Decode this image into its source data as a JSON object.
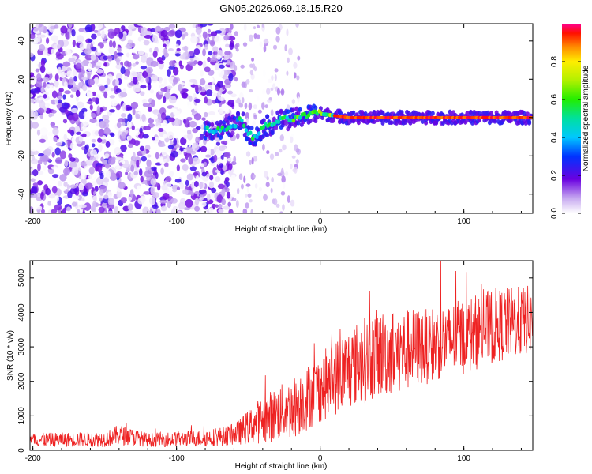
{
  "title": "GN05.2026.069.18.15.R20",
  "chart_data": [
    {
      "type": "heatmap",
      "xlabel": "Height of straight line (km)",
      "ylabel": "Frequency (Hz)",
      "xlim": [
        -202,
        148
      ],
      "ylim": [
        -50,
        49
      ],
      "xticks": [
        -200,
        -100,
        0,
        100
      ],
      "yticks": [
        -40,
        -20,
        0,
        20,
        40
      ],
      "colorbar": {
        "label": "Normalized spectral amplitude",
        "range": [
          0,
          1
        ],
        "ticks": [
          0.0,
          0.2,
          0.4,
          0.6,
          0.8
        ],
        "tick_labels": [
          "0.0",
          "0.2",
          "0.4",
          "0.6",
          "0.8"
        ]
      },
      "features": {
        "noise_region_x": [
          -202,
          -60
        ],
        "trace_points": [
          {
            "x": -80,
            "y": -6
          },
          {
            "x": -70,
            "y": -7
          },
          {
            "x": -60,
            "y": -4
          },
          {
            "x": -55,
            "y": -1
          },
          {
            "x": -50,
            "y": -8
          },
          {
            "x": -45,
            "y": -11
          },
          {
            "x": -40,
            "y": -5
          },
          {
            "x": -35,
            "y": -4
          },
          {
            "x": -30,
            "y": -2
          },
          {
            "x": -25,
            "y": -1
          },
          {
            "x": -20,
            "y": -1
          },
          {
            "x": -15,
            "y": 0
          },
          {
            "x": -10,
            "y": 1
          },
          {
            "x": -5,
            "y": 2
          },
          {
            "x": 0,
            "y": 2
          },
          {
            "x": 10,
            "y": 1
          },
          {
            "x": 20,
            "y": 0
          },
          {
            "x": 148,
            "y": 0
          }
        ]
      }
    },
    {
      "type": "line",
      "xlabel": "Height of straight line (km)",
      "ylabel": "SNR (10 * v/v)",
      "xlim": [
        -202,
        148
      ],
      "ylim": [
        0,
        5500
      ],
      "xticks": [
        -200,
        -100,
        0,
        100
      ],
      "yticks": [
        0,
        1000,
        2000,
        3000,
        4000,
        5000
      ],
      "line_color": "#ee2222",
      "envelope": [
        {
          "x": -202,
          "mean": 300,
          "spread": 200
        },
        {
          "x": -150,
          "mean": 320,
          "spread": 220
        },
        {
          "x": -140,
          "mean": 450,
          "spread": 300
        },
        {
          "x": -120,
          "mean": 300,
          "spread": 200
        },
        {
          "x": -80,
          "mean": 350,
          "spread": 250
        },
        {
          "x": -60,
          "mean": 450,
          "spread": 300
        },
        {
          "x": -40,
          "mean": 900,
          "spread": 700
        },
        {
          "x": -20,
          "mean": 1200,
          "spread": 900
        },
        {
          "x": 0,
          "mean": 1800,
          "spread": 1000
        },
        {
          "x": 20,
          "mean": 2400,
          "spread": 1200
        },
        {
          "x": 40,
          "mean": 2800,
          "spread": 1300
        },
        {
          "x": 60,
          "mean": 2900,
          "spread": 1200
        },
        {
          "x": 80,
          "mean": 3100,
          "spread": 1100
        },
        {
          "x": 100,
          "mean": 3300,
          "spread": 1100
        },
        {
          "x": 120,
          "mean": 3600,
          "spread": 1100
        },
        {
          "x": 148,
          "mean": 3800,
          "spread": 1000
        }
      ],
      "sample_count": 1400
    }
  ]
}
